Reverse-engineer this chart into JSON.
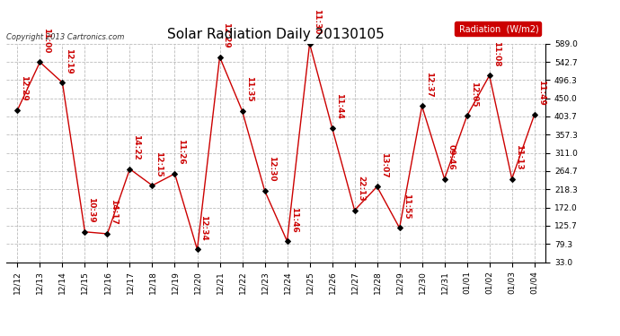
{
  "title": "Solar Radiation Daily 20130105",
  "copyright": "Copyright 2013 Cartronics.com",
  "legend_label": "Radiation  (W/m2)",
  "ylim": [
    33.0,
    589.0
  ],
  "yticks": [
    33.0,
    79.3,
    125.7,
    172.0,
    218.3,
    264.7,
    311.0,
    357.3,
    403.7,
    450.0,
    496.3,
    542.7,
    589.0
  ],
  "x_labels": [
    "12/12",
    "12/13",
    "12/14",
    "12/15",
    "12/16",
    "12/17",
    "12/18",
    "12/19",
    "12/20",
    "12/21",
    "12/22",
    "12/23",
    "12/24",
    "12/25",
    "12/26",
    "12/27",
    "12/28",
    "12/29",
    "12/30",
    "12/31",
    "01/01",
    "01/02",
    "01/03",
    "01/04"
  ],
  "data_points": [
    {
      "label": "12:29",
      "value": 420.0
    },
    {
      "label": "11:00",
      "value": 542.0
    },
    {
      "label": "12:19",
      "value": 490.0
    },
    {
      "label": "10:39",
      "value": 110.0
    },
    {
      "label": "14:17",
      "value": 105.0
    },
    {
      "label": "14:22",
      "value": 270.0
    },
    {
      "label": "12:15",
      "value": 228.0
    },
    {
      "label": "11:26",
      "value": 258.0
    },
    {
      "label": "12:34",
      "value": 65.0
    },
    {
      "label": "12:29",
      "value": 555.0
    },
    {
      "label": "11:35",
      "value": 418.0
    },
    {
      "label": "12:30",
      "value": 215.0
    },
    {
      "label": "11:46",
      "value": 86.0
    },
    {
      "label": "11:30",
      "value": 589.0
    },
    {
      "label": "11:44",
      "value": 375.0
    },
    {
      "label": "22:13",
      "value": 165.0
    },
    {
      "label": "13:07",
      "value": 225.0
    },
    {
      "label": "11:55",
      "value": 120.0
    },
    {
      "label": "12:37",
      "value": 430.0
    },
    {
      "label": "09:46",
      "value": 245.0
    },
    {
      "label": "12:05",
      "value": 405.0
    },
    {
      "label": "11:08",
      "value": 508.0
    },
    {
      "label": "11:13",
      "value": 245.0
    },
    {
      "label": "11:49",
      "value": 408.0
    }
  ],
  "line_color": "#cc0000",
  "marker_color": "#000000",
  "background_color": "#ffffff",
  "grid_color": "#bbbbbb",
  "title_fontsize": 11,
  "tick_fontsize": 6.5,
  "annotation_fontsize": 6.5,
  "legend_bg": "#cc0000",
  "legend_fg": "#ffffff"
}
